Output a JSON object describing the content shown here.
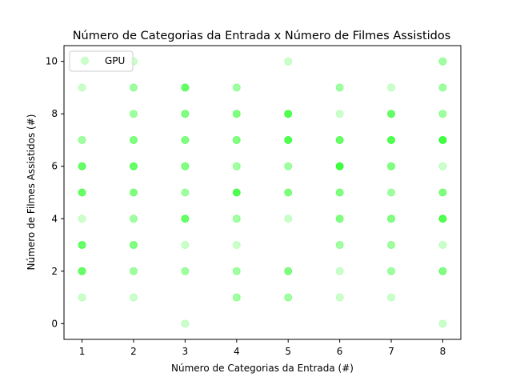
{
  "chart_data": {
    "type": "scatter",
    "title": "Número de Categorias da Entrada x Número de Filmes Assistidos",
    "xlabel": "Número de Categorias da Entrada (#)",
    "ylabel": "Número de Filmes Assistidos (#)",
    "xlim": [
      0.65,
      8.35
    ],
    "ylim": [
      -0.6,
      10.6
    ],
    "xticks": [
      1,
      2,
      3,
      4,
      5,
      6,
      7,
      8
    ],
    "yticks": [
      0,
      2,
      4,
      6,
      8,
      10
    ],
    "grid": false,
    "legend_position": "top-left",
    "series": [
      {
        "name": "GPU",
        "color": "#00ff00",
        "alpha": 0.2,
        "points": [
          {
            "x": 1,
            "y": 1,
            "n": 1
          },
          {
            "x": 1,
            "y": 2,
            "n": 4
          },
          {
            "x": 1,
            "y": 3,
            "n": 4
          },
          {
            "x": 1,
            "y": 4,
            "n": 1
          },
          {
            "x": 1,
            "y": 5,
            "n": 4
          },
          {
            "x": 1,
            "y": 6,
            "n": 4
          },
          {
            "x": 1,
            "y": 7,
            "n": 2
          },
          {
            "x": 1,
            "y": 9,
            "n": 1
          },
          {
            "x": 2,
            "y": 1,
            "n": 1
          },
          {
            "x": 2,
            "y": 2,
            "n": 2
          },
          {
            "x": 2,
            "y": 3,
            "n": 3
          },
          {
            "x": 2,
            "y": 4,
            "n": 2
          },
          {
            "x": 2,
            "y": 5,
            "n": 3
          },
          {
            "x": 2,
            "y": 6,
            "n": 4
          },
          {
            "x": 2,
            "y": 7,
            "n": 3
          },
          {
            "x": 2,
            "y": 8,
            "n": 2
          },
          {
            "x": 2,
            "y": 9,
            "n": 2
          },
          {
            "x": 2,
            "y": 10,
            "n": 1
          },
          {
            "x": 3,
            "y": 0,
            "n": 1
          },
          {
            "x": 3,
            "y": 2,
            "n": 2
          },
          {
            "x": 3,
            "y": 3,
            "n": 1
          },
          {
            "x": 3,
            "y": 4,
            "n": 4
          },
          {
            "x": 3,
            "y": 5,
            "n": 2
          },
          {
            "x": 3,
            "y": 6,
            "n": 3
          },
          {
            "x": 3,
            "y": 7,
            "n": 3
          },
          {
            "x": 3,
            "y": 8,
            "n": 3
          },
          {
            "x": 3,
            "y": 9,
            "n": 4
          },
          {
            "x": 4,
            "y": 1,
            "n": 2
          },
          {
            "x": 4,
            "y": 2,
            "n": 2
          },
          {
            "x": 4,
            "y": 3,
            "n": 1
          },
          {
            "x": 4,
            "y": 4,
            "n": 2
          },
          {
            "x": 4,
            "y": 5,
            "n": 5
          },
          {
            "x": 4,
            "y": 6,
            "n": 2
          },
          {
            "x": 4,
            "y": 7,
            "n": 3
          },
          {
            "x": 4,
            "y": 8,
            "n": 3
          },
          {
            "x": 4,
            "y": 9,
            "n": 2
          },
          {
            "x": 5,
            "y": 1,
            "n": 2
          },
          {
            "x": 5,
            "y": 2,
            "n": 3
          },
          {
            "x": 5,
            "y": 4,
            "n": 1
          },
          {
            "x": 5,
            "y": 5,
            "n": 3
          },
          {
            "x": 5,
            "y": 6,
            "n": 2
          },
          {
            "x": 5,
            "y": 7,
            "n": 5
          },
          {
            "x": 5,
            "y": 8,
            "n": 5
          },
          {
            "x": 5,
            "y": 10,
            "n": 1
          },
          {
            "x": 6,
            "y": 1,
            "n": 1
          },
          {
            "x": 6,
            "y": 2,
            "n": 1
          },
          {
            "x": 6,
            "y": 3,
            "n": 2
          },
          {
            "x": 6,
            "y": 4,
            "n": 3
          },
          {
            "x": 6,
            "y": 5,
            "n": 3
          },
          {
            "x": 6,
            "y": 6,
            "n": 6
          },
          {
            "x": 6,
            "y": 7,
            "n": 4
          },
          {
            "x": 6,
            "y": 8,
            "n": 1
          },
          {
            "x": 6,
            "y": 9,
            "n": 2
          },
          {
            "x": 7,
            "y": 1,
            "n": 1
          },
          {
            "x": 7,
            "y": 2,
            "n": 2
          },
          {
            "x": 7,
            "y": 3,
            "n": 2
          },
          {
            "x": 7,
            "y": 4,
            "n": 3
          },
          {
            "x": 7,
            "y": 5,
            "n": 2
          },
          {
            "x": 7,
            "y": 6,
            "n": 3
          },
          {
            "x": 7,
            "y": 7,
            "n": 5
          },
          {
            "x": 7,
            "y": 8,
            "n": 4
          },
          {
            "x": 7,
            "y": 9,
            "n": 1
          },
          {
            "x": 8,
            "y": 0,
            "n": 1
          },
          {
            "x": 8,
            "y": 2,
            "n": 3
          },
          {
            "x": 8,
            "y": 3,
            "n": 1
          },
          {
            "x": 8,
            "y": 4,
            "n": 5
          },
          {
            "x": 8,
            "y": 5,
            "n": 3
          },
          {
            "x": 8,
            "y": 6,
            "n": 1
          },
          {
            "x": 8,
            "y": 7,
            "n": 6
          },
          {
            "x": 8,
            "y": 8,
            "n": 2
          },
          {
            "x": 8,
            "y": 9,
            "n": 2
          },
          {
            "x": 8,
            "y": 10,
            "n": 2
          }
        ]
      }
    ]
  }
}
